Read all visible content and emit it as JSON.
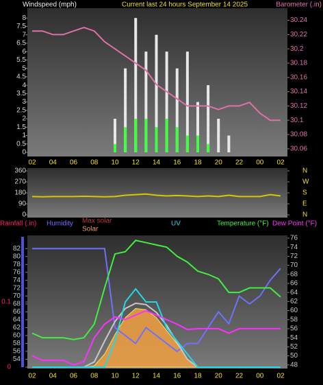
{
  "chart_data": [
    {
      "type": "line",
      "title": "Current last 24 hours September 14 2025",
      "y_label": "Windspeed (mph)",
      "y2_label": "Barometer (.in)",
      "categories": [
        "02",
        null,
        "04",
        null,
        "06",
        null,
        "08",
        null,
        "10",
        null,
        "12",
        null,
        "14",
        null,
        "16",
        null,
        "18",
        null,
        "20",
        null,
        "22",
        null,
        "00",
        null,
        "02"
      ],
      "ylim": [
        0,
        8.5
      ],
      "yticks": [
        0,
        0.5,
        1,
        1.5,
        2,
        2.5,
        3,
        3.5,
        4,
        4.5,
        5,
        5.5,
        6,
        6.5,
        7,
        7.5,
        8
      ],
      "y2lim": [
        30.055,
        30.255
      ],
      "y2ticks": [
        30.06,
        30.08,
        30.1,
        30.12,
        30.14,
        30.16,
        30.18,
        30.2,
        30.22,
        30.24
      ],
      "series": [
        {
          "type": "bar",
          "color": "#e8e8e8",
          "values": [
            0,
            0,
            0,
            0,
            0,
            0,
            0,
            0,
            2,
            5,
            8,
            6,
            7,
            6,
            5,
            6,
            3,
            4,
            2,
            1,
            0,
            0,
            0,
            0,
            0
          ]
        },
        {
          "type": "bar",
          "color": "#40ff40",
          "values": [
            0,
            0,
            0,
            0,
            0,
            0,
            0,
            0,
            0.5,
            1.5,
            2,
            2,
            1.5,
            2,
            1.5,
            1,
            1,
            0.5,
            0,
            0,
            0,
            0,
            0,
            0,
            0
          ]
        },
        {
          "type": "line",
          "axis": "y2",
          "color": "#e070a8",
          "values": [
            30.225,
            30.225,
            30.22,
            30.22,
            30.225,
            30.23,
            30.225,
            30.21,
            30.2,
            30.19,
            30.18,
            30.17,
            30.15,
            30.14,
            30.13,
            30.12,
            30.12,
            30.12,
            30.115,
            30.12,
            30.12,
            30.125,
            30.11,
            30.1,
            30.1
          ]
        }
      ]
    },
    {
      "type": "line",
      "ylim": [
        0,
        360
      ],
      "yticks": [
        0,
        90,
        180,
        270,
        360
      ],
      "y2lim": [
        0,
        360
      ],
      "y2ticks": [
        {
          "value": 360,
          "label": "N"
        },
        {
          "value": 270,
          "label": "W"
        },
        {
          "value": 180,
          "label": "S"
        },
        {
          "value": 90,
          "label": "E"
        },
        {
          "value": 0,
          "label": "N"
        }
      ],
      "series": [
        {
          "type": "line",
          "color": "#d8c800",
          "values": [
            150,
            148,
            150,
            150,
            150,
            152,
            150,
            148,
            150,
            160,
            165,
            170,
            160,
            155,
            158,
            155,
            150,
            155,
            150,
            160,
            150,
            150,
            150,
            165,
            155
          ]
        }
      ]
    },
    {
      "type": "line",
      "rain_label": "Rainfall (.in)",
      "rain_color": "#ff2060",
      "rainlim": [
        0,
        0.2
      ],
      "rainticks": [
        0,
        0.1
      ],
      "categories": [
        "02",
        null,
        "04",
        null,
        "06",
        null,
        "08",
        null,
        "10",
        null,
        "12",
        null,
        "14",
        null,
        "16",
        null,
        "18",
        null,
        "20",
        null,
        "22",
        null,
        "00",
        null,
        "02"
      ],
      "ylim": [
        52,
        85
      ],
      "yticks": [
        54,
        56,
        58,
        60,
        62,
        64,
        66,
        68,
        70,
        72,
        74,
        76,
        78,
        80,
        82
      ],
      "y2lim": [
        47.5,
        76.3
      ],
      "y2ticks": [
        48,
        50,
        52,
        54,
        56,
        58,
        60,
        62,
        64,
        66,
        68,
        70,
        72,
        74,
        76
      ],
      "y3lim": [
        0,
        1000
      ],
      "y4lim": [
        0,
        10
      ],
      "series": [
        {
          "name": "Humidity",
          "type": "line",
          "axis": "y",
          "color": "#7070ff",
          "values": [
            82,
            82,
            82,
            82,
            82,
            82,
            82,
            82,
            62,
            60,
            58,
            62,
            60,
            58,
            56,
            58,
            58,
            62,
            66,
            63,
            70,
            68,
            70,
            74,
            77
          ]
        },
        {
          "name": "Max solar",
          "type": "line",
          "axis": "y3",
          "color": "#c8c8c8",
          "label_color": "#c03838",
          "values": [
            0,
            0,
            0,
            0,
            0,
            0,
            40,
            200,
            350,
            450,
            490,
            480,
            420,
            320,
            190,
            60,
            0,
            0,
            0,
            0,
            0,
            0,
            0,
            0,
            0
          ]
        },
        {
          "name": "Solar",
          "type": "area",
          "axis": "y3",
          "color": "#f0a040",
          "values": [
            0,
            0,
            0,
            0,
            0,
            0,
            10,
            100,
            250,
            380,
            450,
            440,
            380,
            280,
            180,
            60,
            0,
            0,
            0,
            0,
            0,
            0,
            0,
            0,
            0
          ]
        },
        {
          "name": "UV",
          "type": "line",
          "axis": "y4",
          "color": "#20d8e8",
          "values": [
            0,
            0,
            0,
            0,
            0,
            0,
            0,
            0,
            2,
            5,
            6,
            5,
            5,
            3,
            2,
            1,
            0,
            0,
            0,
            0,
            0,
            0,
            0,
            0,
            0
          ]
        },
        {
          "name": "Temperature (°F)",
          "type": "line",
          "axis": "y2",
          "color": "#40f040",
          "values": [
            55,
            54,
            54,
            54,
            53.6,
            54,
            57,
            65,
            72.5,
            73,
            75.5,
            75,
            74.5,
            74,
            72,
            70.7,
            68.7,
            68,
            67,
            64,
            64,
            65,
            65,
            65,
            63
          ]
        },
        {
          "name": "Dew Point (°F)",
          "type": "line",
          "axis": "y2",
          "color": "#ff30ff",
          "values": [
            50,
            49,
            49,
            49,
            48,
            48.7,
            54,
            57,
            58.6,
            58,
            59,
            60,
            59,
            58,
            57,
            55.8,
            56,
            56,
            56,
            55,
            56,
            56,
            56,
            56,
            56
          ]
        }
      ]
    }
  ]
}
